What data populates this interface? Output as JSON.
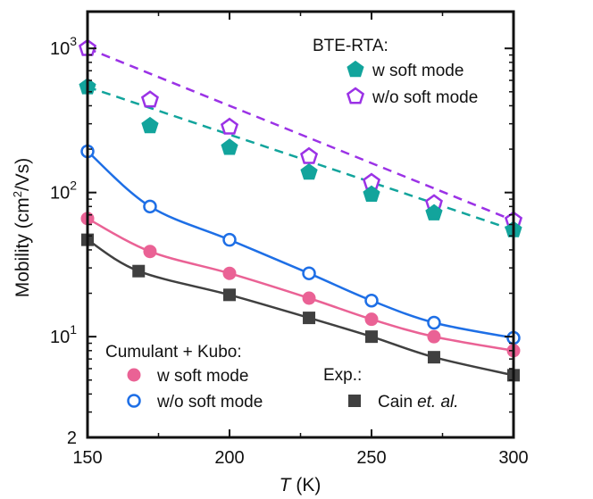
{
  "chart_data": {
    "type": "line",
    "xlabel_var": "T",
    "xlabel_unit": "(K)",
    "ylabel": "Mobility (cm",
    "ylabel_sup": "2",
    "ylabel_tail": "/Vs)",
    "yscale": "log",
    "xlim": [
      150,
      300
    ],
    "ylim": [
      2,
      1800
    ],
    "x_ticks": [
      150,
      200,
      250,
      300
    ],
    "y_ticks": [
      {
        "value": 1000,
        "base": "10",
        "exp": "3"
      },
      {
        "value": 100,
        "base": "10",
        "exp": "2"
      },
      {
        "value": 10,
        "base": "10",
        "exp": "1"
      },
      {
        "value": 2,
        "base": "2",
        "exp": ""
      }
    ],
    "legend_groups": [
      {
        "title": "BTE-RTA:",
        "series": [
          "bte_w",
          "bte_wo"
        ]
      },
      {
        "title": "Cumulant + Kubo:",
        "series": [
          "ck_w",
          "ck_wo"
        ]
      },
      {
        "title": "Exp.:",
        "series": [
          "exp"
        ]
      }
    ],
    "series": [
      {
        "id": "bte_wo",
        "name": "w/o soft mode",
        "color": "#9b32e6",
        "marker": "pentagon-open",
        "line": "dashed",
        "x": [
          150,
          172,
          200,
          228,
          250,
          272,
          300
        ],
        "y": [
          1000,
          440,
          285,
          178,
          118,
          84,
          64
        ]
      },
      {
        "id": "bte_w",
        "name": "w soft mode",
        "color": "#12a49c",
        "marker": "pentagon-filled",
        "line": "dashed",
        "x": [
          150,
          172,
          200,
          228,
          250,
          272,
          300
        ],
        "y": [
          540,
          290,
          205,
          138,
          97,
          72,
          55
        ]
      },
      {
        "id": "ck_wo",
        "name": "w/o soft mode",
        "color": "#1e6fe6",
        "marker": "circle-open",
        "line": "solid",
        "x": [
          150,
          172,
          200,
          228,
          250,
          272,
          300
        ],
        "y": [
          193,
          80,
          47,
          27.5,
          17.8,
          12.5,
          9.8
        ]
      },
      {
        "id": "ck_w",
        "name": "w soft mode",
        "color": "#ea6295",
        "marker": "circle-filled",
        "line": "solid",
        "x": [
          150,
          172,
          200,
          228,
          250,
          272,
          300
        ],
        "y": [
          66,
          39,
          27.5,
          18.5,
          13.2,
          10,
          8
        ]
      },
      {
        "id": "exp",
        "name": "Cain",
        "name_italic": "et. al.",
        "color": "#404040",
        "marker": "square-filled",
        "line": "solid",
        "x": [
          150,
          168,
          200,
          228,
          250,
          272,
          300
        ],
        "y": [
          47,
          28.5,
          19.5,
          13.5,
          10,
          7.2,
          5.4
        ]
      }
    ]
  }
}
